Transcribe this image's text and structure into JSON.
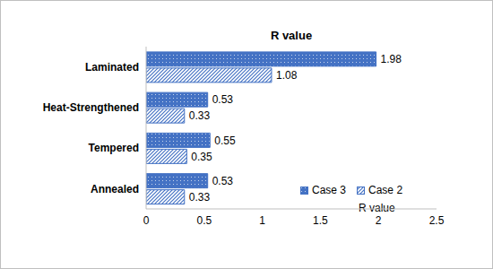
{
  "chart_data": {
    "type": "bar",
    "title": "R value",
    "orientation": "horizontal",
    "categories": [
      "Laminated",
      "Heat-Strengthened",
      "Tempered",
      "Annealed"
    ],
    "series": [
      {
        "name": "Case 3",
        "color": "#4472c4",
        "values": [
          1.98,
          0.53,
          0.55,
          0.53
        ]
      },
      {
        "name": "Case 2",
        "color": "#4472c4",
        "values": [
          1.08,
          0.33,
          0.35,
          0.33
        ]
      }
    ],
    "xlabel": "R value",
    "xlim": [
      0,
      2.5
    ],
    "xticks": [
      0,
      0.5,
      1,
      1.5,
      2,
      2.5
    ],
    "grid": false,
    "legend": "right",
    "data_labels": true
  }
}
